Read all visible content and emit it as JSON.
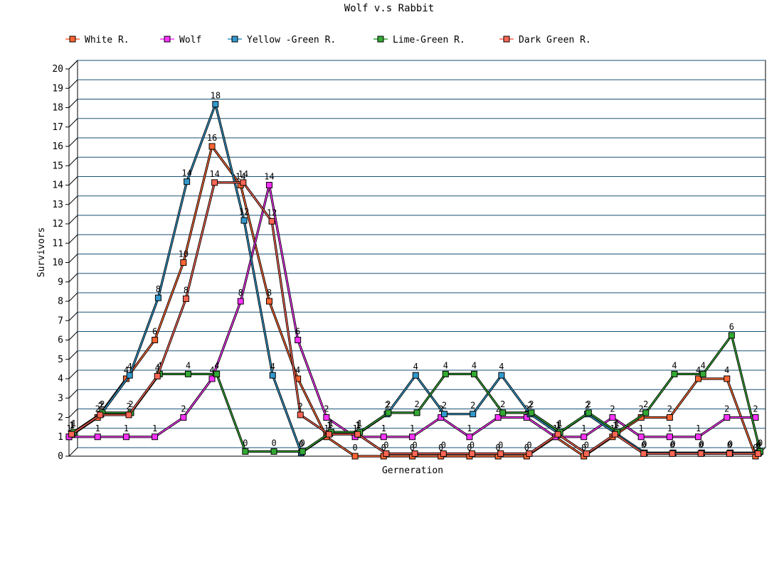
{
  "chart_data": {
    "type": "line",
    "title": "Wolf v.s Rabbit",
    "xlabel": "Gerneration",
    "ylabel": "Survivors",
    "ylim": [
      0,
      20
    ],
    "yticks": [
      "0",
      "1",
      "2",
      "3",
      "4",
      "5",
      "6",
      "7",
      "8",
      "9",
      "10",
      "11",
      "12",
      "13",
      "14",
      "15",
      "16",
      "17",
      "18",
      "19",
      "20"
    ],
    "grid": true,
    "legend_position": "top",
    "series": [
      {
        "name": "White R.",
        "color": "#ff6633",
        "values": [
          1,
          2,
          4,
          6,
          10,
          16,
          14,
          8,
          4,
          1,
          0,
          0,
          0,
          0,
          0,
          0,
          0,
          1,
          0,
          1,
          2,
          2,
          4,
          4,
          0
        ]
      },
      {
        "name": "Wolf",
        "color": "#ff33ff",
        "values": [
          1,
          1,
          1,
          1,
          2,
          4,
          8,
          14,
          6,
          2,
          1,
          1,
          1,
          2,
          1,
          2,
          2,
          1,
          1,
          2,
          1,
          1,
          1,
          2,
          2
        ]
      },
      {
        "name": "Yellow -Green R.",
        "color": "#3399cc",
        "values": [
          1,
          2,
          4,
          8,
          14,
          18,
          12,
          4,
          0,
          1,
          1,
          2,
          4,
          2,
          2,
          4,
          2,
          1,
          2,
          1,
          0,
          0,
          0,
          0,
          0
        ]
      },
      {
        "name": "Lime-Green R.",
        "color": "#33aa33",
        "values": [
          1,
          2,
          2,
          4,
          4,
          4,
          0,
          0,
          0,
          1,
          1,
          2,
          2,
          4,
          4,
          2,
          2,
          1,
          2,
          1,
          2,
          4,
          4,
          6,
          0
        ]
      },
      {
        "name": "Dark Green R.",
        "color": "#ff6655",
        "values": [
          1,
          2,
          2,
          4,
          8,
          14,
          14,
          12,
          2,
          1,
          1,
          0,
          0,
          0,
          0,
          0,
          0,
          1,
          0,
          1,
          0,
          0,
          0,
          0,
          0
        ]
      }
    ]
  }
}
